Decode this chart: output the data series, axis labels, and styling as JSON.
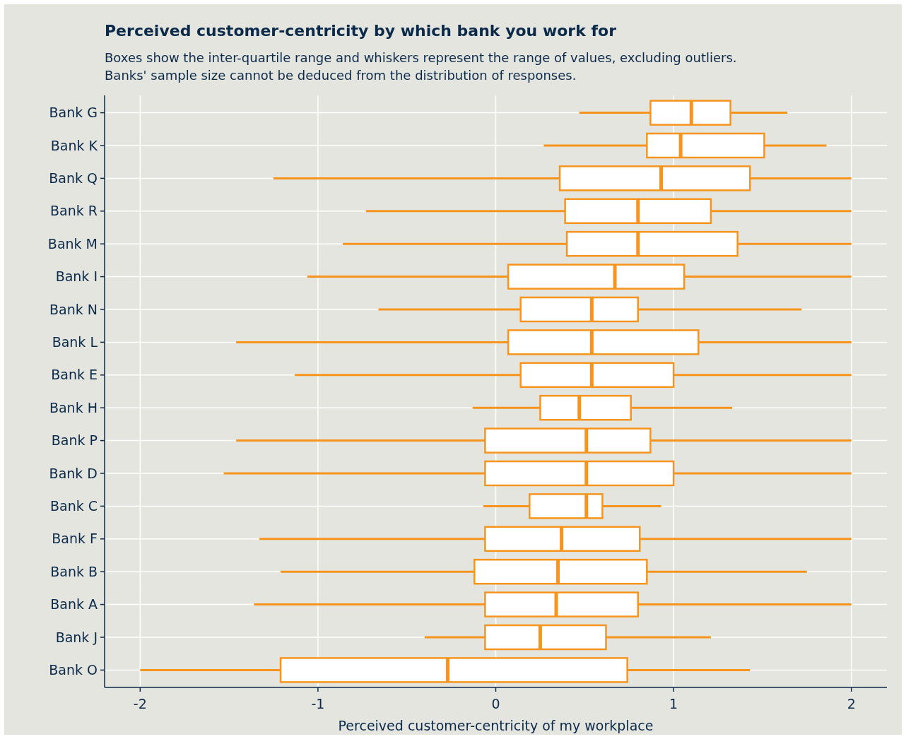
{
  "chart_data": {
    "type": "box",
    "orientation": "horizontal",
    "title": "Perceived customer-centricity by which bank you work for",
    "subtitle": "Boxes show the inter-quartile range and whiskers represent the range of values, excluding outliers.\nBanks' sample size cannot be deduced from the distribution of responses.",
    "xlabel": "Perceived customer-centricity of my workplace",
    "categories": [
      "Bank G",
      "Bank K",
      "Bank Q",
      "Bank R",
      "Bank M",
      "Bank I",
      "Bank N",
      "Bank L",
      "Bank E",
      "Bank H",
      "Bank P",
      "Bank D",
      "Bank C",
      "Bank F",
      "Bank B",
      "Bank A",
      "Bank J",
      "Bank O"
    ],
    "color": "#f7941d",
    "xlim": [
      -2.2,
      2.2
    ],
    "xticks": [
      -2,
      -1,
      0,
      1,
      2
    ],
    "grid": true,
    "boxes": [
      {
        "low": 0.47,
        "q1": 0.87,
        "median": 1.1,
        "q3": 1.32,
        "high": 1.64
      },
      {
        "low": 0.27,
        "q1": 0.85,
        "median": 1.04,
        "q3": 1.51,
        "high": 1.86
      },
      {
        "low": -1.25,
        "q1": 0.36,
        "median": 0.93,
        "q3": 1.43,
        "high": 2
      },
      {
        "low": -0.73,
        "q1": 0.39,
        "median": 0.8,
        "q3": 1.21,
        "high": 2
      },
      {
        "low": -0.86,
        "q1": 0.4,
        "median": 0.8,
        "q3": 1.36,
        "high": 2
      },
      {
        "low": -1.06,
        "q1": 0.07,
        "median": 0.67,
        "q3": 1.06,
        "high": 2
      },
      {
        "low": -0.66,
        "q1": 0.14,
        "median": 0.54,
        "q3": 0.8,
        "high": 1.72
      },
      {
        "low": -1.46,
        "q1": 0.07,
        "median": 0.54,
        "q3": 1.14,
        "high": 2
      },
      {
        "low": -1.13,
        "q1": 0.14,
        "median": 0.54,
        "q3": 1.0,
        "high": 2
      },
      {
        "low": -0.13,
        "q1": 0.25,
        "median": 0.47,
        "q3": 0.76,
        "high": 1.33
      },
      {
        "low": -1.46,
        "q1": -0.06,
        "median": 0.51,
        "q3": 0.87,
        "high": 2
      },
      {
        "low": -1.53,
        "q1": -0.06,
        "median": 0.51,
        "q3": 1.0,
        "high": 2
      },
      {
        "low": -0.07,
        "q1": 0.19,
        "median": 0.51,
        "q3": 0.6,
        "high": 0.93
      },
      {
        "low": -1.33,
        "q1": -0.06,
        "median": 0.37,
        "q3": 0.81,
        "high": 2
      },
      {
        "low": -1.21,
        "q1": -0.12,
        "median": 0.35,
        "q3": 0.85,
        "high": 1.75
      },
      {
        "low": -1.36,
        "q1": -0.06,
        "median": 0.34,
        "q3": 0.8,
        "high": 2
      },
      {
        "low": -0.4,
        "q1": -0.06,
        "median": 0.25,
        "q3": 0.62,
        "high": 1.21
      },
      {
        "low": -2,
        "q1": -1.21,
        "median": -0.27,
        "q3": 0.74,
        "high": 1.43
      }
    ]
  }
}
